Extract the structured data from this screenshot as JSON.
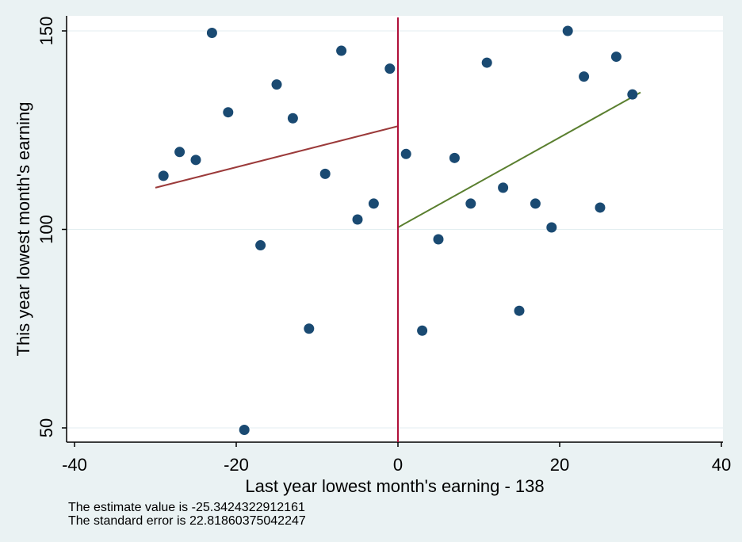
{
  "chart_data": {
    "type": "scatter",
    "title": "",
    "xlabel": "Last year lowest month's earning - 138",
    "ylabel": "This year lowest month's earning",
    "xlim": [
      -40,
      40
    ],
    "ylim": [
      50,
      150
    ],
    "xticks": [
      -40,
      -20,
      0,
      20,
      40
    ],
    "yticks": [
      50,
      100,
      150
    ],
    "x_tick_labels": [
      "-40",
      "-20",
      "0",
      "20",
      "40"
    ],
    "y_tick_labels": [
      "50",
      "100",
      "150"
    ],
    "grid": "horizontal",
    "cutoff": 0,
    "points": [
      {
        "x": -29,
        "y": 113.5
      },
      {
        "x": -27,
        "y": 119.5
      },
      {
        "x": -25,
        "y": 117.5
      },
      {
        "x": -23,
        "y": 149.5
      },
      {
        "x": -21,
        "y": 129.5
      },
      {
        "x": -19,
        "y": 49.5
      },
      {
        "x": -17,
        "y": 96
      },
      {
        "x": -15,
        "y": 136.5
      },
      {
        "x": -13,
        "y": 128
      },
      {
        "x": -11,
        "y": 75
      },
      {
        "x": -9,
        "y": 114
      },
      {
        "x": -7,
        "y": 145
      },
      {
        "x": -5,
        "y": 102.5
      },
      {
        "x": -3,
        "y": 106.5
      },
      {
        "x": -1,
        "y": 140.5
      },
      {
        "x": 1,
        "y": 119
      },
      {
        "x": 3,
        "y": 74.5
      },
      {
        "x": 5,
        "y": 97.5
      },
      {
        "x": 7,
        "y": 118
      },
      {
        "x": 9,
        "y": 106.5
      },
      {
        "x": 11,
        "y": 142
      },
      {
        "x": 13,
        "y": 110.5
      },
      {
        "x": 15,
        "y": 79.5
      },
      {
        "x": 17,
        "y": 106.5
      },
      {
        "x": 19,
        "y": 100.5
      },
      {
        "x": 21,
        "y": 150
      },
      {
        "x": 23,
        "y": 138.5
      },
      {
        "x": 25,
        "y": 105.5
      },
      {
        "x": 27,
        "y": 143.5
      },
      {
        "x": 29,
        "y": 134
      }
    ],
    "fit_lines": [
      {
        "side": "left",
        "x": [
          -30,
          0
        ],
        "y": [
          110.5,
          126
        ],
        "color": "#9b3a3a"
      },
      {
        "side": "right",
        "x": [
          0,
          30
        ],
        "y": [
          100.5,
          134.5
        ],
        "color": "#5a7f2f"
      }
    ],
    "cutoff_line_color": "#b0103a",
    "point_color": "#1a4a72"
  },
  "notes": [
    "The estimate value is -25.3424322912161",
    "The standard error is 22.81860375042247"
  ]
}
